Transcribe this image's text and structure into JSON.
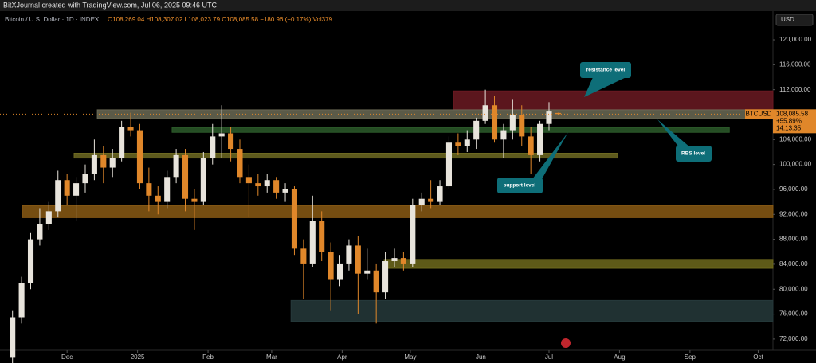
{
  "header": "BitXJournal created with TradingView.com, Jul 06, 2025 09:46 UTC",
  "chart_data": {
    "type": "candlestick",
    "title": "Bitcoin / U.S. Dollar · 1D · INDEX",
    "ohlc_text": "O108,269.04 H108,307.02 L108,023.79 C108,085.58 −180.96 (−0.17%) Vol379",
    "currency": "USD",
    "symbol": "BTCUSD",
    "last_price_label": "108,085.58",
    "change_label": "+55.89%",
    "countdown": "14:13:35",
    "up_color": "#e8e4dc",
    "down_color": "#e0872a",
    "xlim": [
      -3.5,
      336.5
    ],
    "ylim": [
      70200,
      124600
    ],
    "xticks": [
      {
        "value": 26,
        "label": "Dec"
      },
      {
        "value": 57,
        "label": "2025"
      },
      {
        "value": 88,
        "label": "Feb"
      },
      {
        "value": 116,
        "label": "Mar"
      },
      {
        "value": 147,
        "label": "Apr"
      },
      {
        "value": 177,
        "label": "May"
      },
      {
        "value": 208,
        "label": "Jun"
      },
      {
        "value": 238,
        "label": "Jul"
      },
      {
        "value": 269,
        "label": "Aug"
      },
      {
        "value": 300,
        "label": "Sep"
      },
      {
        "value": 330,
        "label": "Oct"
      }
    ],
    "yticks": [
      {
        "value": 120000,
        "label": "120,000.00"
      },
      {
        "value": 116000,
        "label": "116,000.00"
      },
      {
        "value": 112000,
        "label": "112,000.00"
      },
      {
        "value": 108000,
        "label": "108,000.00"
      },
      {
        "value": 104000,
        "label": "104,000.00"
      },
      {
        "value": 100000,
        "label": "100,000.00"
      },
      {
        "value": 96000,
        "label": "96,000.00"
      },
      {
        "value": 92000,
        "label": "92,000.00"
      },
      {
        "value": 88000,
        "label": "88,000.00"
      },
      {
        "value": 84000,
        "label": "84,000.00"
      },
      {
        "value": 80000,
        "label": "80,000.00"
      },
      {
        "value": 76000,
        "label": "76,000.00"
      },
      {
        "value": 72000,
        "label": "72,000.00"
      }
    ],
    "x": [
      2,
      6,
      10,
      14,
      18,
      22,
      26,
      30,
      34,
      38,
      42,
      46,
      50,
      54,
      58,
      62,
      66,
      70,
      74,
      78,
      82,
      86,
      90,
      94,
      98,
      102,
      106,
      110,
      114,
      118,
      122,
      126,
      130,
      134,
      138,
      142,
      146,
      150,
      154,
      158,
      162,
      166,
      170,
      174,
      178,
      182,
      186,
      190,
      194,
      198,
      202,
      206,
      210,
      214,
      218,
      222,
      226,
      230,
      234,
      238,
      242
    ],
    "open": [
      69000,
      75500,
      81000,
      88000,
      90500,
      92500,
      97500,
      95000,
      97000,
      98500,
      101500,
      99500,
      101000,
      106000,
      105500,
      97000,
      95000,
      94000,
      98000,
      101500,
      94500,
      94000,
      101000,
      104500,
      105000,
      102500,
      98000,
      97000,
      96500,
      97500,
      95500,
      96000,
      86500,
      84000,
      91000,
      86000,
      81500,
      84000,
      87000,
      82500,
      83000,
      79500,
      84500,
      85000,
      84000,
      93500,
      94500,
      94000,
      96500,
      103500,
      103000,
      104000,
      107000,
      109500,
      104000,
      105500,
      108000,
      104500,
      101500,
      106500,
      108269.04
    ],
    "high": [
      76500,
      82000,
      89000,
      93000,
      94000,
      99000,
      98500,
      98000,
      100000,
      104000,
      103000,
      102500,
      107000,
      108300,
      106500,
      99500,
      96500,
      99000,
      102500,
      102500,
      96000,
      102000,
      106500,
      109500,
      106000,
      104000,
      100000,
      98500,
      98500,
      98000,
      97000,
      96500,
      88000,
      95000,
      92500,
      87500,
      85500,
      88000,
      88500,
      86500,
      84000,
      86000,
      86500,
      86000,
      94500,
      95500,
      97500,
      97500,
      104500,
      105000,
      105500,
      107500,
      112000,
      111000,
      106500,
      110500,
      109500,
      106000,
      107000,
      110000,
      108307.02
    ],
    "low": [
      68000,
      74500,
      80000,
      87000,
      89500,
      91500,
      93500,
      91000,
      95500,
      97500,
      97000,
      98000,
      100500,
      104500,
      96000,
      92500,
      92000,
      93000,
      97000,
      92500,
      89500,
      93500,
      100000,
      101000,
      100500,
      97000,
      91500,
      95000,
      95500,
      94500,
      94000,
      85500,
      78500,
      83500,
      84500,
      76500,
      80500,
      83000,
      76000,
      81500,
      74500,
      78500,
      83500,
      83000,
      83500,
      92500,
      93000,
      93500,
      96000,
      101500,
      102000,
      102500,
      106500,
      103500,
      101000,
      104000,
      103000,
      98500,
      100500,
      105500,
      108023.79
    ],
    "close": [
      75500,
      81000,
      88000,
      90500,
      92500,
      97500,
      95000,
      97000,
      98500,
      101500,
      99500,
      101000,
      106000,
      105500,
      97000,
      95000,
      94000,
      98000,
      101500,
      94500,
      94000,
      101000,
      104500,
      105000,
      102500,
      98000,
      97000,
      96500,
      97500,
      95500,
      96000,
      86500,
      84000,
      91000,
      86000,
      81500,
      84000,
      87000,
      82500,
      83000,
      79500,
      84500,
      85000,
      84000,
      93500,
      94500,
      94000,
      96500,
      103500,
      103000,
      104000,
      107000,
      109500,
      104000,
      105500,
      108000,
      104500,
      101500,
      106500,
      108500,
      108085.58
    ],
    "zones": [
      {
        "x0": 196,
        "x1": 336.5,
        "y0": 108800,
        "y1": 111800,
        "color": "#6b1a22"
      },
      {
        "x0": 39.3,
        "x1": 336.5,
        "y0": 107355,
        "y1": 108774,
        "color": "#6b6a55"
      },
      {
        "x0": 72.2,
        "x1": 317.3,
        "y0": 105161,
        "y1": 105935,
        "color": "#2c5a2a"
      },
      {
        "x0": 29.1,
        "x1": 268.2,
        "y0": 101032,
        "y1": 101806,
        "color": "#6e6a22"
      },
      {
        "x0": 6.3,
        "x1": 336.5,
        "y0": 91484,
        "y1": 93419,
        "color": "#8a5a14"
      },
      {
        "x0": 165.5,
        "x1": 336.5,
        "y0": 83355,
        "y1": 84774,
        "color": "#6f6a1c"
      },
      {
        "x0": 124.5,
        "x1": 336.5,
        "y0": 74839,
        "y1": 78194,
        "color": "#26393b"
      }
    ],
    "annotations": [
      "resistance level",
      "RBS level",
      "support level"
    ]
  }
}
